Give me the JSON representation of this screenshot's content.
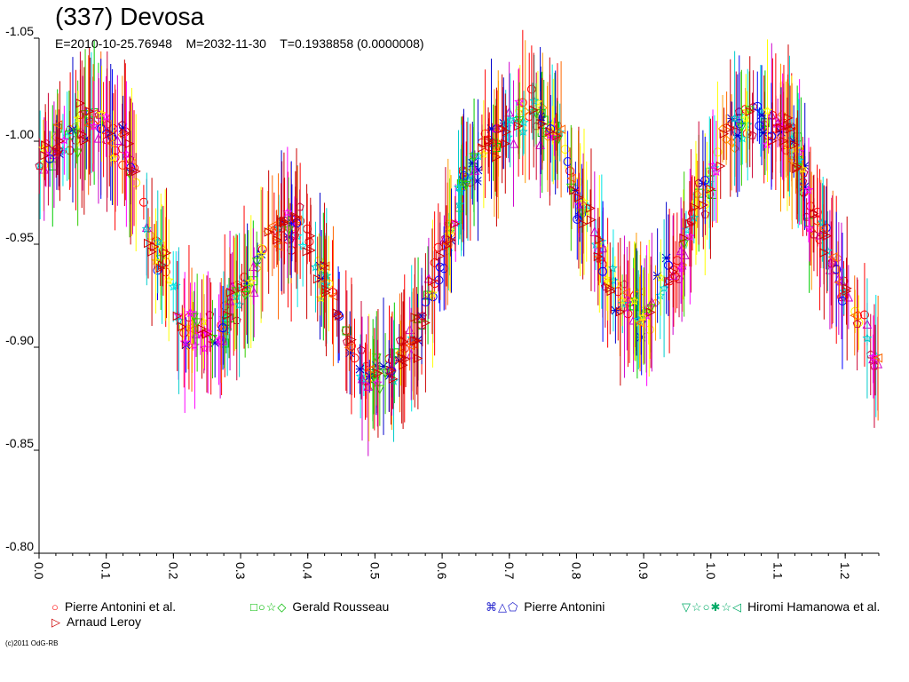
{
  "chart_data": {
    "type": "scatter",
    "title": "(337) Devosa",
    "subtitle": "E=2010-10-25.76948    M=2032-11-30    T=0.1938858 (0.0000008)",
    "xlabel": "",
    "ylabel": "",
    "xlim": [
      0.0,
      1.25
    ],
    "ylim": [
      -1.05,
      -0.8
    ],
    "y_reversed": true,
    "grid": false,
    "x_ticks": [
      "0.0",
      "0.1",
      "0.2",
      "0.3",
      "0.4",
      "0.5",
      "0.6",
      "0.7",
      "0.8",
      "0.9",
      "1.0",
      "1.1",
      "1.2"
    ],
    "x_tick_values": [
      0.0,
      0.1,
      0.2,
      0.3,
      0.4,
      0.5,
      0.6,
      0.7,
      0.8,
      0.9,
      1.0,
      1.1,
      1.2
    ],
    "y_ticks": [
      "-1.05",
      "-1.00",
      "-0.95",
      "-0.90",
      "-0.85",
      "-0.80"
    ],
    "y_tick_values": [
      -1.05,
      -1.0,
      -0.95,
      -0.9,
      -0.85,
      -0.8
    ],
    "lightcurve_knots": {
      "phase": [
        0.0,
        0.05,
        0.08,
        0.12,
        0.18,
        0.22,
        0.26,
        0.3,
        0.35,
        0.38,
        0.42,
        0.46,
        0.49,
        0.52,
        0.56,
        0.6,
        0.64,
        0.69,
        0.73,
        0.77,
        0.81,
        0.86,
        0.9,
        0.94,
        0.99,
        1.03,
        1.07,
        1.11,
        1.16,
        1.2,
        1.25
      ],
      "magnitude": [
        -0.99,
        -1.005,
        -1.01,
        -1.0,
        -0.945,
        -0.91,
        -0.905,
        -0.925,
        -0.955,
        -0.96,
        -0.935,
        -0.905,
        -0.885,
        -0.89,
        -0.905,
        -0.945,
        -0.985,
        -1.005,
        -1.015,
        -1.005,
        -0.965,
        -0.925,
        -0.915,
        -0.935,
        -0.975,
        -1.005,
        -1.01,
        -1.005,
        -0.96,
        -0.925,
        -0.895
      ]
    },
    "legend_position": "bottom",
    "series": [
      {
        "name": "Pierre Antonini et al.",
        "colors": [
          "#ff0000"
        ],
        "markers": [
          "circle"
        ],
        "points": 120,
        "phase_offset": 0.0
      },
      {
        "name": "Gerald Rousseau",
        "colors": [
          "#00cc00",
          "#ffff00",
          "#00e5e5",
          "#ff9900"
        ],
        "markers": [
          "square",
          "circle",
          "star",
          "diamond"
        ],
        "points": 160,
        "phase_offset": 0.0
      },
      {
        "name": "Pierre Antonini",
        "colors": [
          "#0000cc",
          "#cc00cc",
          "#cc0033"
        ],
        "markers": [
          "cross",
          "triangle-up",
          "pentagon"
        ],
        "points": 150,
        "phase_offset": 0.0
      },
      {
        "name": "Hiromi Hamanowa et al.",
        "colors": [
          "#33cc00",
          "#ffff00",
          "#0000ff",
          "#ff00ff",
          "#00cccc",
          "#ff6600"
        ],
        "markers": [
          "triangle-down",
          "star",
          "circle",
          "star",
          "star",
          "triangle-left"
        ],
        "points": 200,
        "phase_offset": 0.0
      },
      {
        "name": "Arnaud Leroy",
        "colors": [
          "#cc0000"
        ],
        "markers": [
          "triangle-right"
        ],
        "points": 110,
        "phase_offset": 0.0
      }
    ]
  },
  "legend": [
    {
      "label": "Pierre Antonini et al.",
      "symbols": "○"
    },
    {
      "label": "Gerald Rousseau",
      "symbols": "□○☆◇"
    },
    {
      "label": "Pierre Antonini",
      "symbols": "⌘△⬠"
    },
    {
      "label": "Hiromi Hamanowa et al.",
      "symbols": "▽☆○✱☆◁"
    },
    {
      "label": "Arnaud Leroy",
      "symbols": "▷"
    }
  ],
  "copyright": "(c)2011 OdG-RB"
}
